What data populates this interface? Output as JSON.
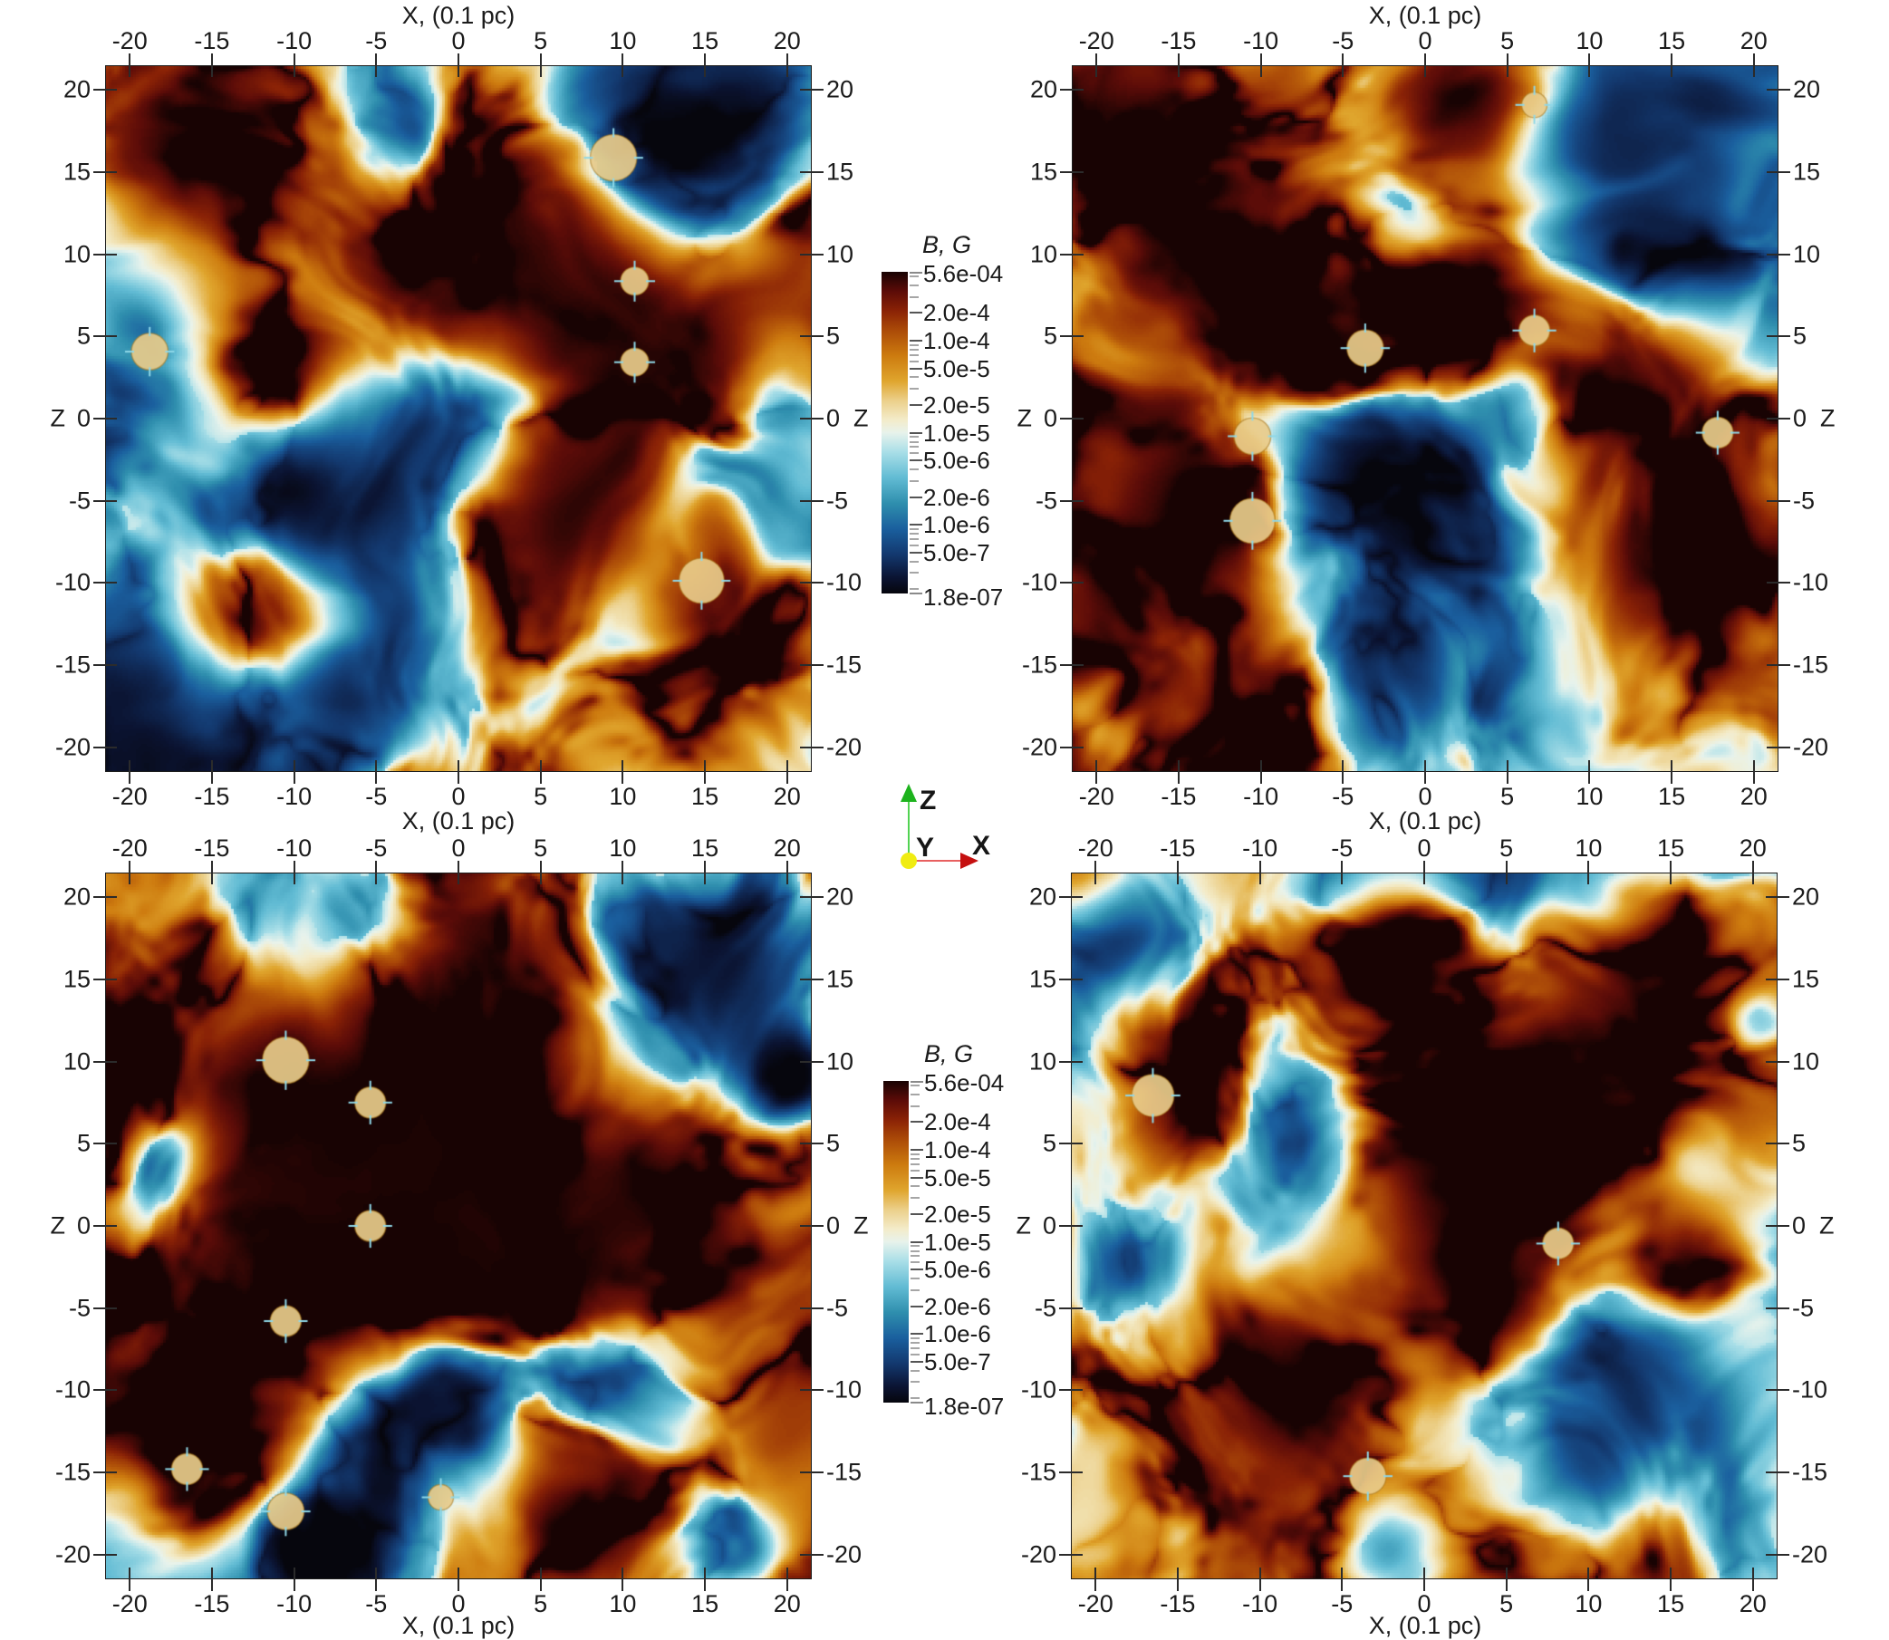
{
  "figure": {
    "background": "#ffffff",
    "axis_title_x": "X, (0.1 pc)",
    "axis_title_z": "Z",
    "x_tick_labels": [
      "-20",
      "-15",
      "-10",
      "-5",
      "0",
      "5",
      "10",
      "15",
      "20"
    ],
    "x_tick_values": [
      -20,
      -15,
      -10,
      -5,
      0,
      5,
      10,
      15,
      20
    ],
    "z_tick_labels": [
      "20",
      "15",
      "10",
      "5",
      "0",
      "-5",
      "-10",
      "-15",
      "-20"
    ],
    "z_tick_values": [
      20,
      15,
      10,
      5,
      0,
      -5,
      -10,
      -15,
      -20
    ]
  },
  "colorbar": {
    "title": "B, G",
    "max_label": "5.6e-04",
    "min_label": "1.8e-07",
    "max_value": 0.00056,
    "min_value": 1.8e-07,
    "scale": "log",
    "tick_labels": [
      "2.0e-4",
      "1.0e-4",
      "5.0e-5",
      "2.0e-5",
      "1.0e-5",
      "5.0e-6",
      "2.0e-6",
      "1.0e-6",
      "5.0e-7"
    ],
    "tick_values": [
      0.0002,
      0.0001,
      5e-05,
      2e-05,
      1e-05,
      5e-06,
      2e-06,
      1e-06,
      5e-07
    ],
    "colormap_stops": [
      [
        0.0,
        "#06060d"
      ],
      [
        0.05,
        "#0b1433"
      ],
      [
        0.12,
        "#13386e"
      ],
      [
        0.2,
        "#1a5f9e"
      ],
      [
        0.28,
        "#2f8fae"
      ],
      [
        0.36,
        "#62bcd4"
      ],
      [
        0.44,
        "#aadfe8"
      ],
      [
        0.5,
        "#e8f3ec"
      ],
      [
        0.54,
        "#f4ecca"
      ],
      [
        0.6,
        "#ecd08a"
      ],
      [
        0.66,
        "#e0a62e"
      ],
      [
        0.74,
        "#cd7b0f"
      ],
      [
        0.82,
        "#ab4a08"
      ],
      [
        0.88,
        "#8a2206"
      ],
      [
        0.94,
        "#5c0c08"
      ],
      [
        1.0,
        "#180303"
      ]
    ]
  },
  "orientation_axes": {
    "x_label": "X",
    "y_label": "Y",
    "z_label": "Z",
    "x_color": "#d42020",
    "y_color": "#f0ec12",
    "z_color": "#1db31d"
  },
  "chart_data": {
    "type": "heatmap",
    "value_field": "B, G",
    "value_range": [
      1.8e-07,
      0.00056
    ],
    "color_scale": "log",
    "xlabel": "X, (0.1 pc)",
    "ylabel": "Z",
    "x_ticks": [
      -20,
      -15,
      -10,
      -5,
      0,
      5,
      10,
      15,
      20
    ],
    "z_ticks": [
      -20,
      -15,
      -10,
      -5,
      0,
      5,
      10,
      15,
      20
    ],
    "panels": [
      {
        "position": "top-left",
        "seed": 101,
        "x_range": [
          -21.5,
          21.5
        ],
        "z_range": [
          -21.5,
          21.5
        ],
        "warm_bias": 0.0,
        "cool_regions": [
          [
            0.76,
            0.1,
            0.2,
            -0.5
          ],
          [
            0.42,
            0.1,
            0.1,
            -0.35
          ],
          [
            0.47,
            0.53,
            0.17,
            -0.55
          ],
          [
            0.02,
            0.47,
            0.12,
            -0.4
          ],
          [
            0.38,
            0.87,
            0.15,
            -0.45
          ],
          [
            0.27,
            0.63,
            0.1,
            -0.6
          ],
          [
            0.92,
            0.05,
            0.1,
            -0.4
          ],
          [
            0.05,
            0.93,
            0.1,
            -0.3
          ]
        ],
        "warm_regions": [
          [
            0.13,
            0.13,
            0.15,
            0.5
          ],
          [
            0.58,
            0.22,
            0.16,
            0.65
          ],
          [
            0.72,
            0.4,
            0.13,
            0.7
          ],
          [
            0.66,
            0.62,
            0.12,
            0.55
          ],
          [
            0.24,
            0.38,
            0.11,
            0.45
          ],
          [
            0.2,
            0.77,
            0.1,
            0.5
          ],
          [
            0.86,
            0.78,
            0.13,
            0.5
          ],
          [
            0.45,
            0.33,
            0.1,
            0.4
          ]
        ],
        "sink_circles": [
          [
            0.72,
            0.13,
            0.033
          ],
          [
            0.75,
            0.305,
            0.02
          ],
          [
            0.75,
            0.42,
            0.02
          ],
          [
            0.062,
            0.405,
            0.026
          ],
          [
            0.845,
            0.73,
            0.032
          ]
        ]
      },
      {
        "position": "top-right",
        "seed": 202,
        "x_range": [
          -21.5,
          21.5
        ],
        "z_range": [
          -21.5,
          21.5
        ],
        "warm_bias": 0.02,
        "cool_regions": [
          [
            0.8,
            0.13,
            0.22,
            -0.65
          ],
          [
            0.47,
            0.22,
            0.1,
            -0.35
          ],
          [
            0.42,
            0.56,
            0.15,
            -0.45
          ],
          [
            0.44,
            0.84,
            0.18,
            -0.65
          ],
          [
            0.02,
            0.93,
            0.08,
            -0.35
          ],
          [
            0.63,
            0.47,
            0.08,
            -0.3
          ]
        ],
        "warm_regions": [
          [
            0.13,
            0.27,
            0.17,
            0.6
          ],
          [
            0.33,
            0.4,
            0.12,
            0.5
          ],
          [
            0.55,
            0.33,
            0.12,
            0.6
          ],
          [
            0.18,
            0.62,
            0.13,
            0.55
          ],
          [
            0.78,
            0.45,
            0.13,
            0.55
          ],
          [
            0.85,
            0.7,
            0.12,
            0.5
          ],
          [
            0.3,
            0.9,
            0.1,
            0.45
          ],
          [
            0.55,
            0.05,
            0.1,
            0.45
          ],
          [
            0.05,
            0.05,
            0.1,
            0.45
          ]
        ],
        "sink_circles": [
          [
            0.255,
            0.525,
            0.026
          ],
          [
            0.255,
            0.645,
            0.032
          ],
          [
            0.415,
            0.4,
            0.026
          ],
          [
            0.655,
            0.375,
            0.022
          ],
          [
            0.915,
            0.52,
            0.022
          ],
          [
            0.655,
            0.055,
            0.018
          ]
        ]
      },
      {
        "position": "bottom-left",
        "seed": 303,
        "x_range": [
          -21.5,
          21.5
        ],
        "z_range": [
          -21.5,
          21.5
        ],
        "warm_bias": 0.06,
        "cool_regions": [
          [
            0.33,
            0.07,
            0.1,
            -0.4
          ],
          [
            0.86,
            0.13,
            0.15,
            -0.5
          ],
          [
            0.97,
            0.28,
            0.06,
            -0.75
          ],
          [
            0.47,
            0.76,
            0.11,
            -0.45
          ],
          [
            0.72,
            0.72,
            0.12,
            -0.45
          ],
          [
            0.08,
            0.4,
            0.07,
            -0.3
          ],
          [
            0.3,
            0.97,
            0.08,
            -0.7
          ],
          [
            0.88,
            0.97,
            0.08,
            -0.35
          ]
        ],
        "warm_regions": [
          [
            0.2,
            0.3,
            0.18,
            0.6
          ],
          [
            0.45,
            0.42,
            0.18,
            0.65
          ],
          [
            0.32,
            0.6,
            0.14,
            0.6
          ],
          [
            0.6,
            0.55,
            0.13,
            0.55
          ],
          [
            0.15,
            0.78,
            0.13,
            0.55
          ],
          [
            0.55,
            0.14,
            0.12,
            0.5
          ],
          [
            0.78,
            0.45,
            0.1,
            0.45
          ],
          [
            0.68,
            0.9,
            0.11,
            0.5
          ],
          [
            0.05,
            0.6,
            0.08,
            0.45
          ]
        ],
        "sink_circles": [
          [
            0.255,
            0.265,
            0.033
          ],
          [
            0.375,
            0.325,
            0.022
          ],
          [
            0.375,
            0.5,
            0.022
          ],
          [
            0.255,
            0.635,
            0.022
          ],
          [
            0.115,
            0.845,
            0.022
          ],
          [
            0.255,
            0.905,
            0.026
          ],
          [
            0.475,
            0.885,
            0.018
          ]
        ]
      },
      {
        "position": "bottom-right",
        "seed": 404,
        "x_range": [
          -21.5,
          21.5
        ],
        "z_range": [
          -21.5,
          21.5
        ],
        "warm_bias": 0.05,
        "cool_regions": [
          [
            0.3,
            0.37,
            0.13,
            -0.45
          ],
          [
            0.08,
            0.08,
            0.1,
            -0.35
          ],
          [
            0.76,
            0.8,
            0.15,
            -0.6
          ],
          [
            0.45,
            0.96,
            0.08,
            -0.4
          ],
          [
            0.08,
            0.55,
            0.07,
            -0.3
          ],
          [
            0.97,
            0.2,
            0.06,
            -0.3
          ]
        ],
        "warm_regions": [
          [
            0.55,
            0.42,
            0.18,
            0.7
          ],
          [
            0.3,
            0.75,
            0.15,
            0.6
          ],
          [
            0.75,
            0.3,
            0.13,
            0.55
          ],
          [
            0.15,
            0.3,
            0.11,
            0.5
          ],
          [
            0.88,
            0.55,
            0.1,
            0.5
          ],
          [
            0.45,
            0.07,
            0.11,
            0.5
          ],
          [
            0.83,
            0.08,
            0.09,
            0.45
          ],
          [
            0.6,
            0.62,
            0.1,
            0.55
          ]
        ],
        "sink_circles": [
          [
            0.115,
            0.315,
            0.03
          ],
          [
            0.69,
            0.525,
            0.022
          ],
          [
            0.42,
            0.855,
            0.026
          ]
        ]
      }
    ]
  }
}
